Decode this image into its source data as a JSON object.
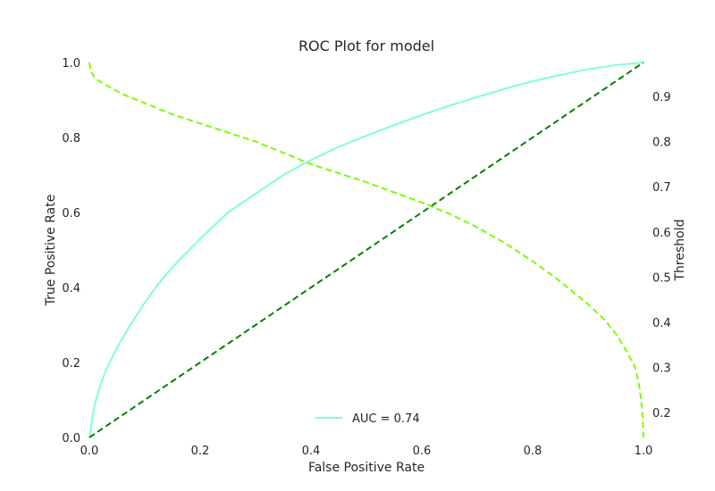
{
  "chart_data": {
    "type": "line",
    "title": "ROC Plot for model",
    "xlabel": "False Positive Rate",
    "ylabel": "True Positive Rate",
    "y2label": "Threshold",
    "xlim": [
      0,
      1
    ],
    "ylim": [
      0,
      1
    ],
    "y2lim": [
      0.145,
      0.975
    ],
    "x_ticks": [
      "0.0",
      "0.2",
      "0.4",
      "0.6",
      "0.8",
      "1.0"
    ],
    "y_ticks": [
      "0.0",
      "0.2",
      "0.4",
      "0.6",
      "0.8",
      "1.0"
    ],
    "y2_ticks": [
      "0.2",
      "0.3",
      "0.4",
      "0.5",
      "0.6",
      "0.7",
      "0.8",
      "0.9"
    ],
    "grid": false,
    "legend_position": "bottom-center",
    "colors": {
      "roc": "#7fffd4",
      "diagonal": "#008000",
      "threshold": "#7cfc00",
      "text": "#262626",
      "threshold_label": "#7cfc00"
    },
    "series": [
      {
        "name": "AUC = 0.74",
        "axis": "left",
        "style": "solid",
        "x": [
          0.0,
          0.005,
          0.01,
          0.02,
          0.03,
          0.05,
          0.07,
          0.1,
          0.13,
          0.16,
          0.2,
          0.25,
          0.3,
          0.35,
          0.4,
          0.45,
          0.5,
          0.55,
          0.6,
          0.65,
          0.7,
          0.75,
          0.8,
          0.85,
          0.9,
          0.95,
          1.0
        ],
        "y": [
          0.0,
          0.05,
          0.09,
          0.14,
          0.18,
          0.24,
          0.29,
          0.36,
          0.42,
          0.47,
          0.53,
          0.6,
          0.65,
          0.7,
          0.74,
          0.775,
          0.805,
          0.833,
          0.86,
          0.885,
          0.908,
          0.93,
          0.95,
          0.967,
          0.982,
          0.993,
          1.0
        ]
      },
      {
        "axis": "left",
        "style": "dashed",
        "x": [
          0.0,
          1.0
        ],
        "y": [
          0.0,
          1.0
        ]
      },
      {
        "axis": "right",
        "style": "dashed",
        "x": [
          0.0,
          0.003,
          0.01,
          0.03,
          0.06,
          0.1,
          0.15,
          0.2,
          0.3,
          0.4,
          0.5,
          0.6,
          0.65,
          0.7,
          0.75,
          0.8,
          0.85,
          0.9,
          0.93,
          0.95,
          0.97,
          0.985,
          0.993,
          0.998,
          1.0
        ],
        "y": [
          0.975,
          0.955,
          0.94,
          0.925,
          0.905,
          0.885,
          0.86,
          0.84,
          0.8,
          0.75,
          0.71,
          0.665,
          0.64,
          0.61,
          0.575,
          0.535,
          0.49,
          0.44,
          0.405,
          0.375,
          0.335,
          0.3,
          0.255,
          0.2,
          0.145
        ]
      }
    ]
  }
}
